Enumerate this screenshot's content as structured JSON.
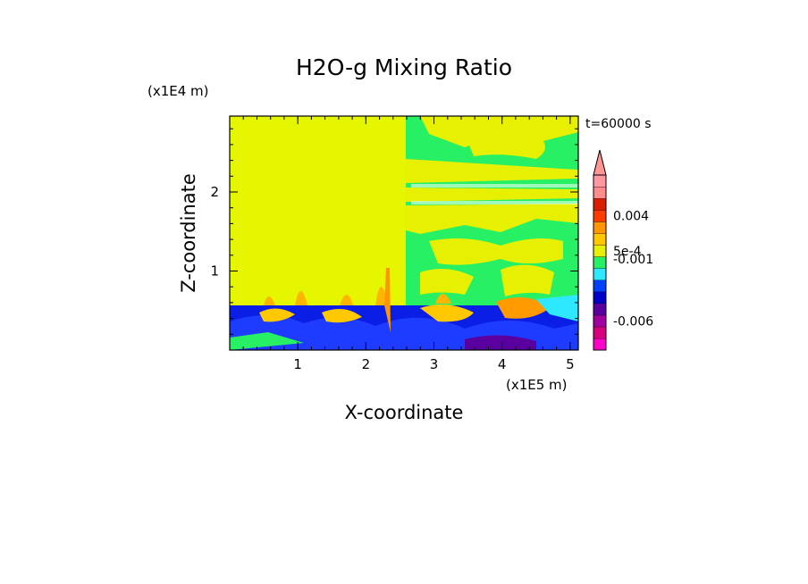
{
  "chart_data": {
    "type": "heatmap",
    "title": "H2O-g Mixing Ratio",
    "xlabel": "X-coordinate",
    "ylabel": "Z-coordinate",
    "x_unit": "(x1E5 m)",
    "y_unit": "(x1E4 m)",
    "time_label": "t=60000 s",
    "xlim": [
      0,
      5.12
    ],
    "ylim": [
      0,
      2.96
    ],
    "x_ticks": [
      "1",
      "2",
      "3",
      "4",
      "5"
    ],
    "y_ticks": [
      "1",
      "2"
    ],
    "colorbar": {
      "colors": [
        "#ff00c8",
        "#d7007d",
        "#a000a0",
        "#5a00a0",
        "#0000c8",
        "#0040ff",
        "#2ee8ff",
        "#28f064",
        "#e6f000",
        "#ffc800",
        "#ff9600",
        "#ff3c00",
        "#dc1e00",
        "#ff8c8c",
        "#ff96a0"
      ],
      "labels": [
        "0.004",
        "5e-4",
        "-0.001",
        "-0.006"
      ],
      "label_levels": [
        11.5,
        8.5,
        7.8,
        2.5
      ],
      "extend_max": true
    },
    "regions": [
      {
        "description": "",
        "x": [
          0,
          2.55
        ],
        "z": [
          0.62,
          2.96
        ],
        "value": "5e-4"
      },
      {
        "description": "",
        "x": [
          2.55,
          5.12
        ],
        "z": [
          0.6,
          2.96
        ],
        "value": "0"
      },
      {
        "description": "",
        "x": [
          0,
          5.12
        ],
        "z": [
          0,
          0.6
        ],
        "value": "-0.001"
      }
    ]
  }
}
